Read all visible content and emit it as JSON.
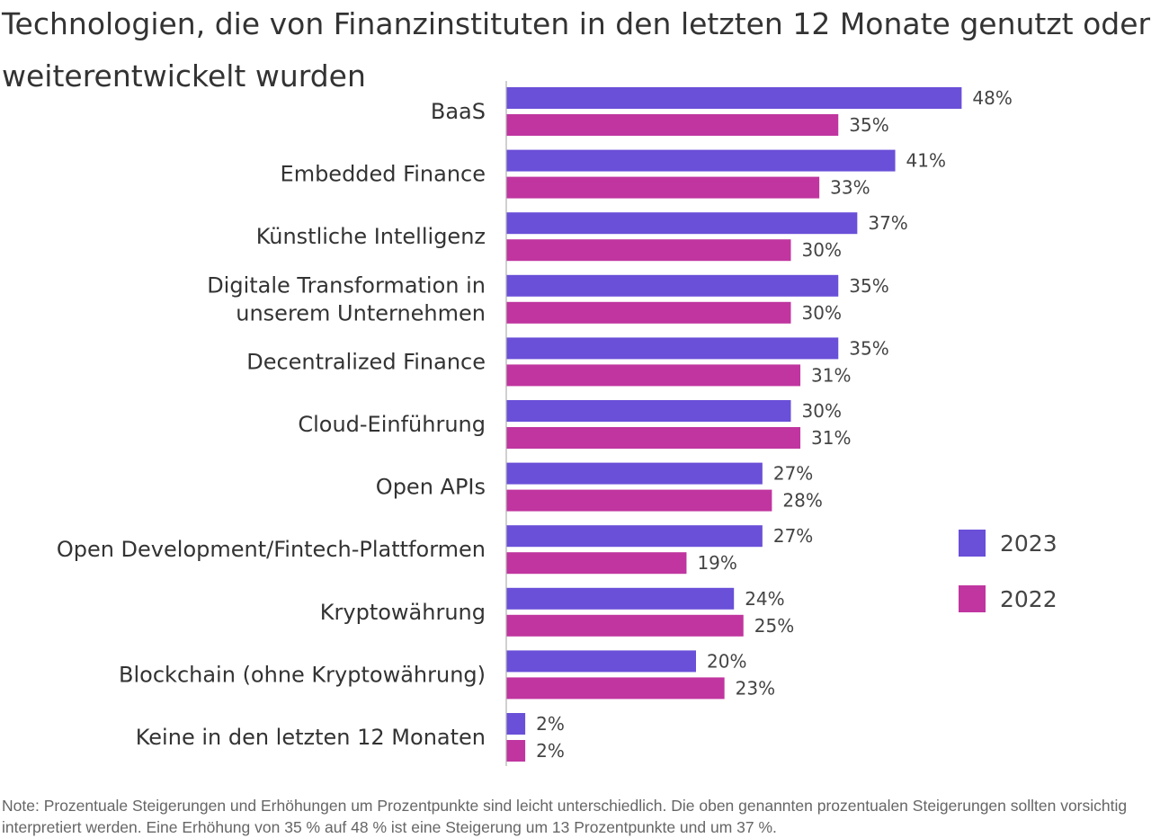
{
  "title": "Technologien, die von Finanzinstituten in den letzten 12 Monate genutzt oder weiterentwickelt wurden",
  "note": "Note: Prozentuale Steigerungen und Erhöhungen um Prozentpunkte sind leicht unterschiedlich. Die oben genannten prozentualen Steigerungen sollten vorsichtig interpretiert werden. Eine Erhöhung von 35 % auf 48 % ist eine Steigerung um 13 Prozentpunkte und um 37 %.",
  "colors": {
    "series_2023": "#6a4fd8",
    "series_2022": "#c0359f",
    "axis": "#b0b0b0"
  },
  "chart_data": {
    "type": "bar",
    "orientation": "horizontal",
    "categories": [
      [
        "BaaS"
      ],
      [
        "Embedded Finance"
      ],
      [
        "Künstliche Intelligenz"
      ],
      [
        "Digitale Transformation in",
        "unserem Unternehmen"
      ],
      [
        "Decentralized Finance"
      ],
      [
        "Cloud-Einführung"
      ],
      [
        "Open APIs"
      ],
      [
        "Open Development/Fintech-Plattformen"
      ],
      [
        "Kryptowährung"
      ],
      [
        "Blockchain (ohne Kryptowährung)"
      ],
      [
        "Keine in den letzten 12 Monaten"
      ]
    ],
    "series": [
      {
        "name": "2023",
        "values": [
          48,
          41,
          37,
          35,
          35,
          30,
          27,
          27,
          24,
          20,
          2
        ],
        "labels": [
          "48%",
          "41%",
          "37%",
          "35%",
          "35%",
          "30%",
          "27%",
          "27%",
          "24%",
          "20%",
          "2%"
        ]
      },
      {
        "name": "2022",
        "values": [
          35,
          33,
          30,
          30,
          31,
          31,
          28,
          19,
          25,
          23,
          2
        ],
        "labels": [
          "35%",
          "33%",
          "30%",
          "30%",
          "31%",
          "31%",
          "28%",
          "19%",
          "25%",
          "23%",
          "2%"
        ]
      }
    ],
    "value_unit": "%",
    "grid": false,
    "legend_position": "right"
  }
}
